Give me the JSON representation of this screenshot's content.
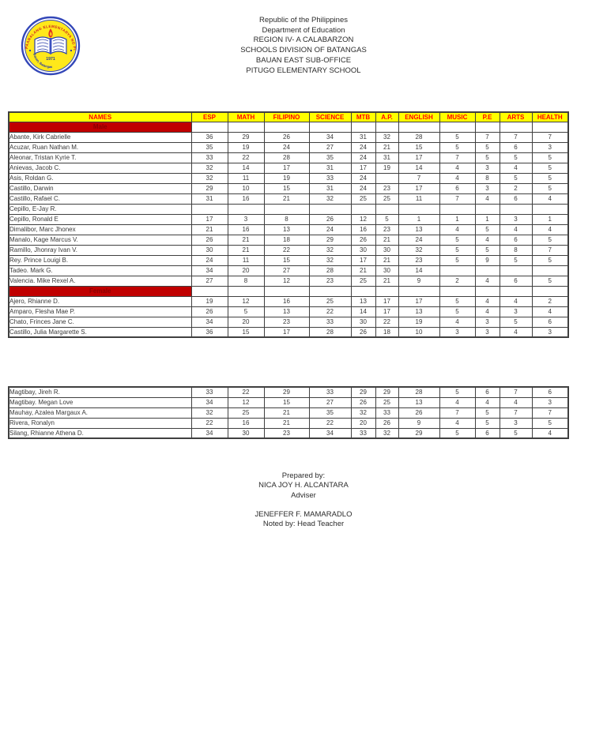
{
  "header": {
    "lines": [
      "Republic of the Philippines",
      "Department of Education",
      "REGION IV- A CALABARZON",
      "SCHOOLS DIVISION OF BATANGAS",
      "BAUAN EAST SUB-OFFICE",
      "PITUGO ELEMENTARY SCHOOL"
    ],
    "logo": {
      "year": "1971",
      "ring_text_top": "PAARALANG ELEMENTARYA NG PITUGO",
      "ring_text_bottom": "Bauan, Batangas"
    }
  },
  "colors": {
    "header_bg": "#ffff00",
    "header_text": "#ff0000",
    "band_bg": "#c00000",
    "band_text": "#8b0000",
    "cell_text": "#3a3a3a",
    "border": "#404040"
  },
  "table": {
    "columns": [
      "NAMES",
      "ESP",
      "MATH",
      "FILIPINO",
      "SCIENCE",
      "MTB",
      "A.P.",
      "ENGLISH",
      "MUSIC",
      "P.E",
      "ARTS",
      "HEALTH"
    ],
    "sections": [
      {
        "label": "Male",
        "rows": [
          {
            "name": "Abante, Kirk Cabrielle",
            "scores": [
              "36",
              "29",
              "26",
              "34",
              "31",
              "32",
              "28",
              "5",
              "7",
              "7",
              "7"
            ]
          },
          {
            "name": "Acuzar, Ruan Nathan M.",
            "scores": [
              "35",
              "19",
              "24",
              "27",
              "24",
              "21",
              "15",
              "5",
              "5",
              "6",
              "3"
            ]
          },
          {
            "name": "Aleonar, Tristan Kyrie T.",
            "scores": [
              "33",
              "22",
              "28",
              "35",
              "24",
              "31",
              "17",
              "7",
              "5",
              "5",
              "5"
            ]
          },
          {
            "name": "Anievas, Jacob C.",
            "scores": [
              "32",
              "14",
              "17",
              "31",
              "17",
              "19",
              "14",
              "4",
              "3",
              "4",
              "5"
            ]
          },
          {
            "name": "Asis, Roldan G.",
            "scores": [
              "32",
              "11",
              "19",
              "33",
              "24",
              "",
              "7",
              "4",
              "8",
              "5",
              "5"
            ]
          },
          {
            "name": "Castillo, Darwin",
            "scores": [
              "29",
              "10",
              "15",
              "31",
              "24",
              "23",
              "17",
              "6",
              "3",
              "2",
              "5"
            ]
          },
          {
            "name": "Castillo, Rafael C.",
            "scores": [
              "31",
              "16",
              "21",
              "32",
              "25",
              "25",
              "11",
              "7",
              "4",
              "6",
              "4"
            ]
          },
          {
            "name": "Cepillo, E-Jay R.",
            "scores": [
              "",
              "",
              "",
              "",
              "",
              "",
              "",
              "",
              "",
              "",
              ""
            ]
          },
          {
            "name": "Cepillo, Ronald E",
            "scores": [
              "17",
              "3",
              "8",
              "26",
              "12",
              "5",
              "1",
              "1",
              "1",
              "3",
              "1"
            ]
          },
          {
            "name": "Dimalibor, Marc Jhonex",
            "scores": [
              "21",
              "16",
              "13",
              "24",
              "16",
              "23",
              "13",
              "4",
              "5",
              "4",
              "4"
            ]
          },
          {
            "name": "Manalo, Kage Marcus V.",
            "scores": [
              "26",
              "21",
              "18",
              "29",
              "26",
              "21",
              "24",
              "5",
              "4",
              "6",
              "5"
            ]
          },
          {
            "name": "Ramillo, Jhonray Ivan V.",
            "scores": [
              "30",
              "21",
              "22",
              "32",
              "30",
              "30",
              "32",
              "5",
              "5",
              "8",
              "7"
            ]
          },
          {
            "name": "Rey. Prince Louigi B.",
            "scores": [
              "24",
              "11",
              "15",
              "32",
              "17",
              "21",
              "23",
              "5",
              "9",
              "5",
              "5"
            ]
          },
          {
            "name": "Tadeo. Mark G.",
            "scores": [
              "34",
              "20",
              "27",
              "28",
              "21",
              "30",
              "14",
              "",
              "",
              "",
              ""
            ]
          },
          {
            "name": "Valencia. Mike Rexel A.",
            "scores": [
              "27",
              "8",
              "12",
              "23",
              "25",
              "21",
              "9",
              "2",
              "4",
              "6",
              "5"
            ]
          }
        ]
      },
      {
        "label": "Female",
        "rows": [
          {
            "name": "Ajero, Rhianne D.",
            "scores": [
              "19",
              "12",
              "16",
              "25",
              "13",
              "17",
              "17",
              "5",
              "4",
              "4",
              "2"
            ]
          },
          {
            "name": "Amparo, Flesha Mae P.",
            "scores": [
              "26",
              "5",
              "13",
              "22",
              "14",
              "17",
              "13",
              "5",
              "4",
              "3",
              "4"
            ]
          },
          {
            "name": "Chato, Frinces Jane C.",
            "scores": [
              "34",
              "20",
              "23",
              "33",
              "30",
              "22",
              "19",
              "4",
              "3",
              "5",
              "6"
            ]
          },
          {
            "name": "Castillo, Julia Margarette S.",
            "scores": [
              "36",
              "15",
              "17",
              "28",
              "26",
              "18",
              "10",
              "3",
              "3",
              "4",
              "3"
            ]
          }
        ]
      }
    ],
    "continuation_rows": [
      {
        "name": "Magtibay, Jireh R.",
        "scores": [
          "33",
          "22",
          "29",
          "33",
          "29",
          "29",
          "28",
          "5",
          "6",
          "7",
          "6"
        ]
      },
      {
        "name": "Magtibay. Megan Love",
        "scores": [
          "34",
          "12",
          "15",
          "27",
          "26",
          "25",
          "13",
          "4",
          "4",
          "4",
          "3"
        ]
      },
      {
        "name": "Mauhay, Azalea Margaux A.",
        "scores": [
          "32",
          "25",
          "21",
          "35",
          "32",
          "33",
          "26",
          "7",
          "5",
          "7",
          "7"
        ]
      },
      {
        "name": "Rivera, Ronalyn",
        "scores": [
          "22",
          "16",
          "21",
          "22",
          "20",
          "26",
          "9",
          "4",
          "5",
          "3",
          "5"
        ]
      },
      {
        "name": "Silang, Rhianne Athena D.",
        "scores": [
          "34",
          "30",
          "23",
          "34",
          "33",
          "32",
          "29",
          "5",
          "6",
          "5",
          "4"
        ]
      }
    ]
  },
  "footer": {
    "prepared_by_label": "Prepared by:",
    "adviser_name": "NICA JOY H. ALCANTARA",
    "adviser_title": "Adviser",
    "head_teacher_name": "JENEFFER F. MAMARADLO",
    "noted_by_label": "Noted by: Head Teacher"
  }
}
